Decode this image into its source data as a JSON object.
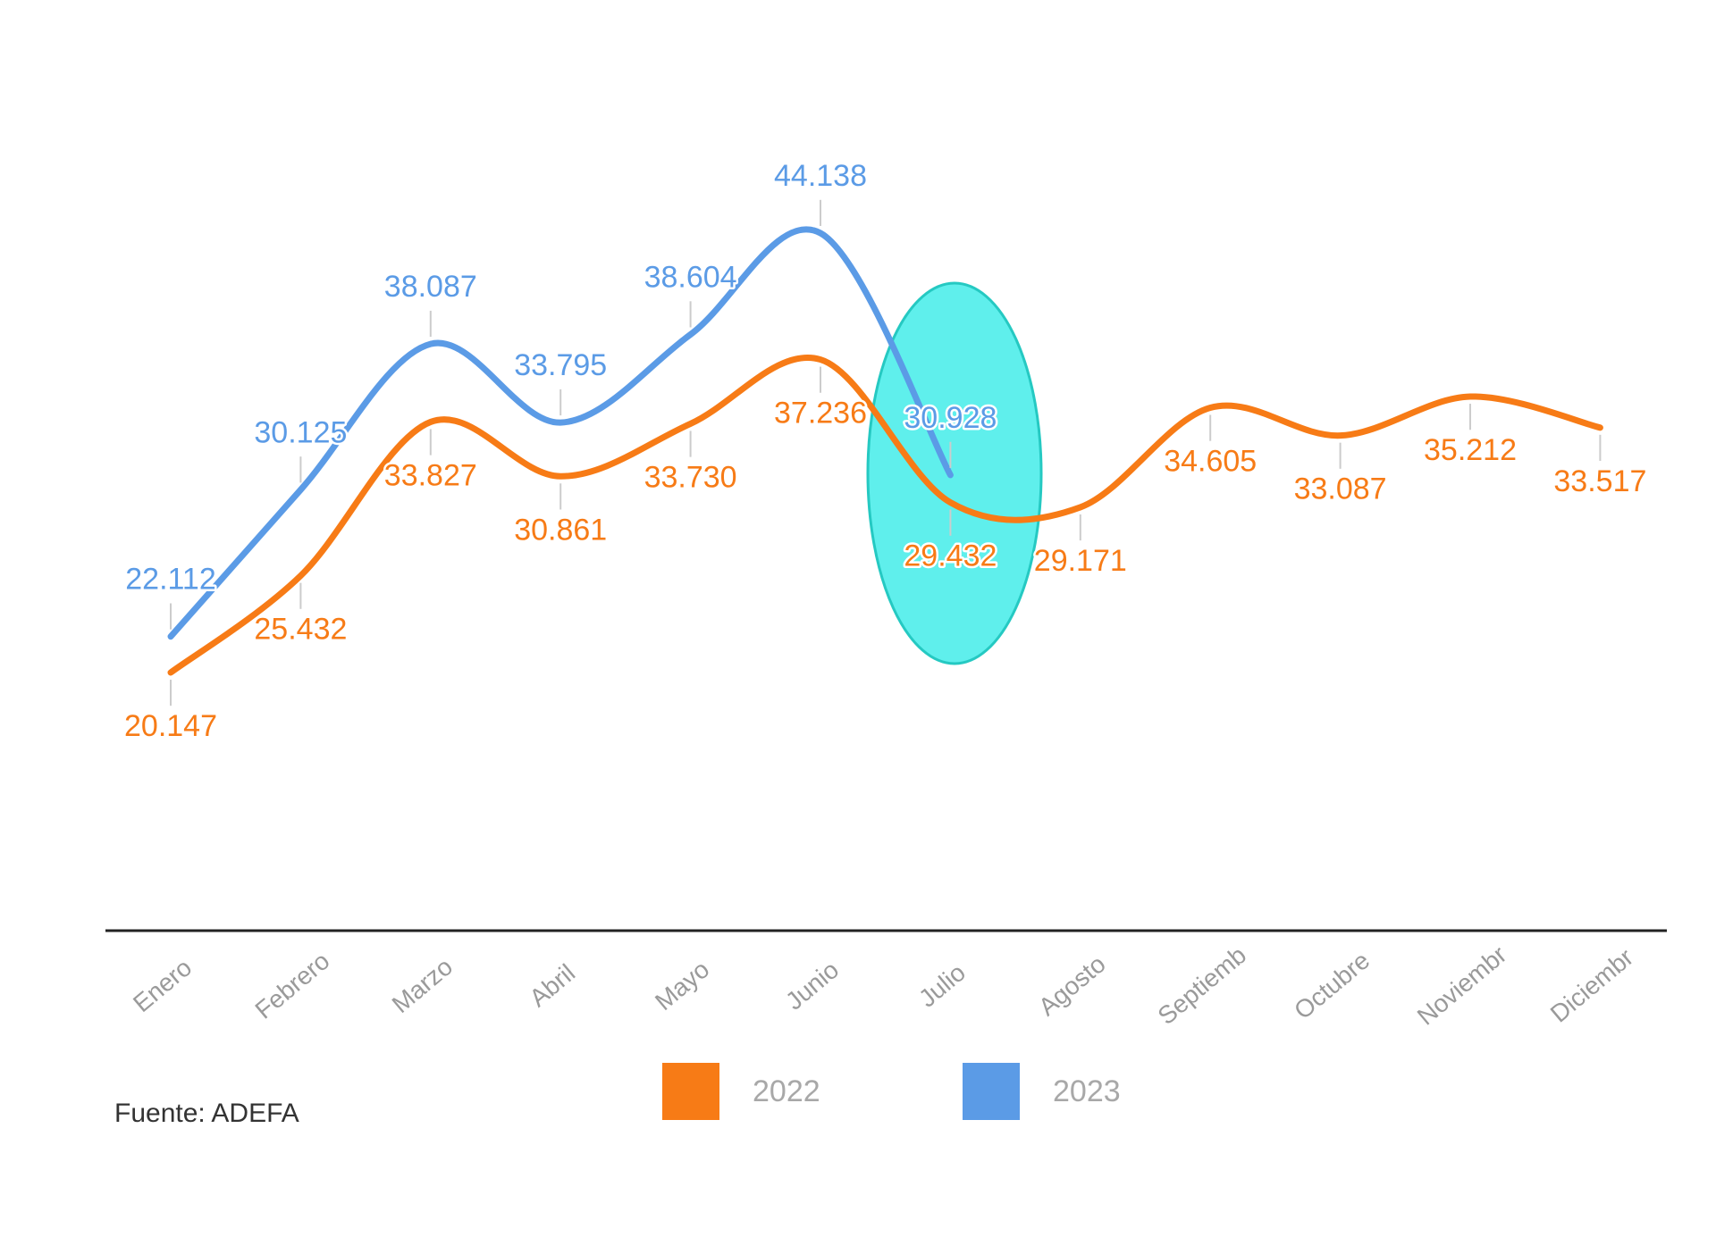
{
  "chart_data": {
    "type": "line",
    "categories": [
      "Enero",
      "Febrero",
      "Marzo",
      "Abril",
      "Mayo",
      "Junio",
      "Julio",
      "Agosto",
      "Septiemb",
      "Octubre",
      "Noviembr",
      "Diciembr"
    ],
    "series": [
      {
        "name": "2022",
        "color": "#f77b16",
        "values": [
          20147,
          25432,
          33827,
          30861,
          33730,
          37236,
          29432,
          29171,
          34605,
          33087,
          35212,
          33517
        ],
        "value_labels": [
          "20.147",
          "25.432",
          "33.827",
          "30.861",
          "33.730",
          "37.236",
          "29.432",
          "29.171",
          "34.605",
          "33.087",
          "35.212",
          "33.517"
        ]
      },
      {
        "name": "2023",
        "color": "#5b9be6",
        "values": [
          22112,
          30125,
          38087,
          33795,
          38604,
          44138,
          30928,
          null,
          null,
          null,
          null,
          null
        ],
        "value_labels": [
          "22.112",
          "30.125",
          "38.087",
          "33.795",
          "38.604",
          "44.138",
          "30.928",
          null,
          null,
          null,
          null,
          null
        ]
      }
    ],
    "source": "Fuente: ADEFA"
  }
}
